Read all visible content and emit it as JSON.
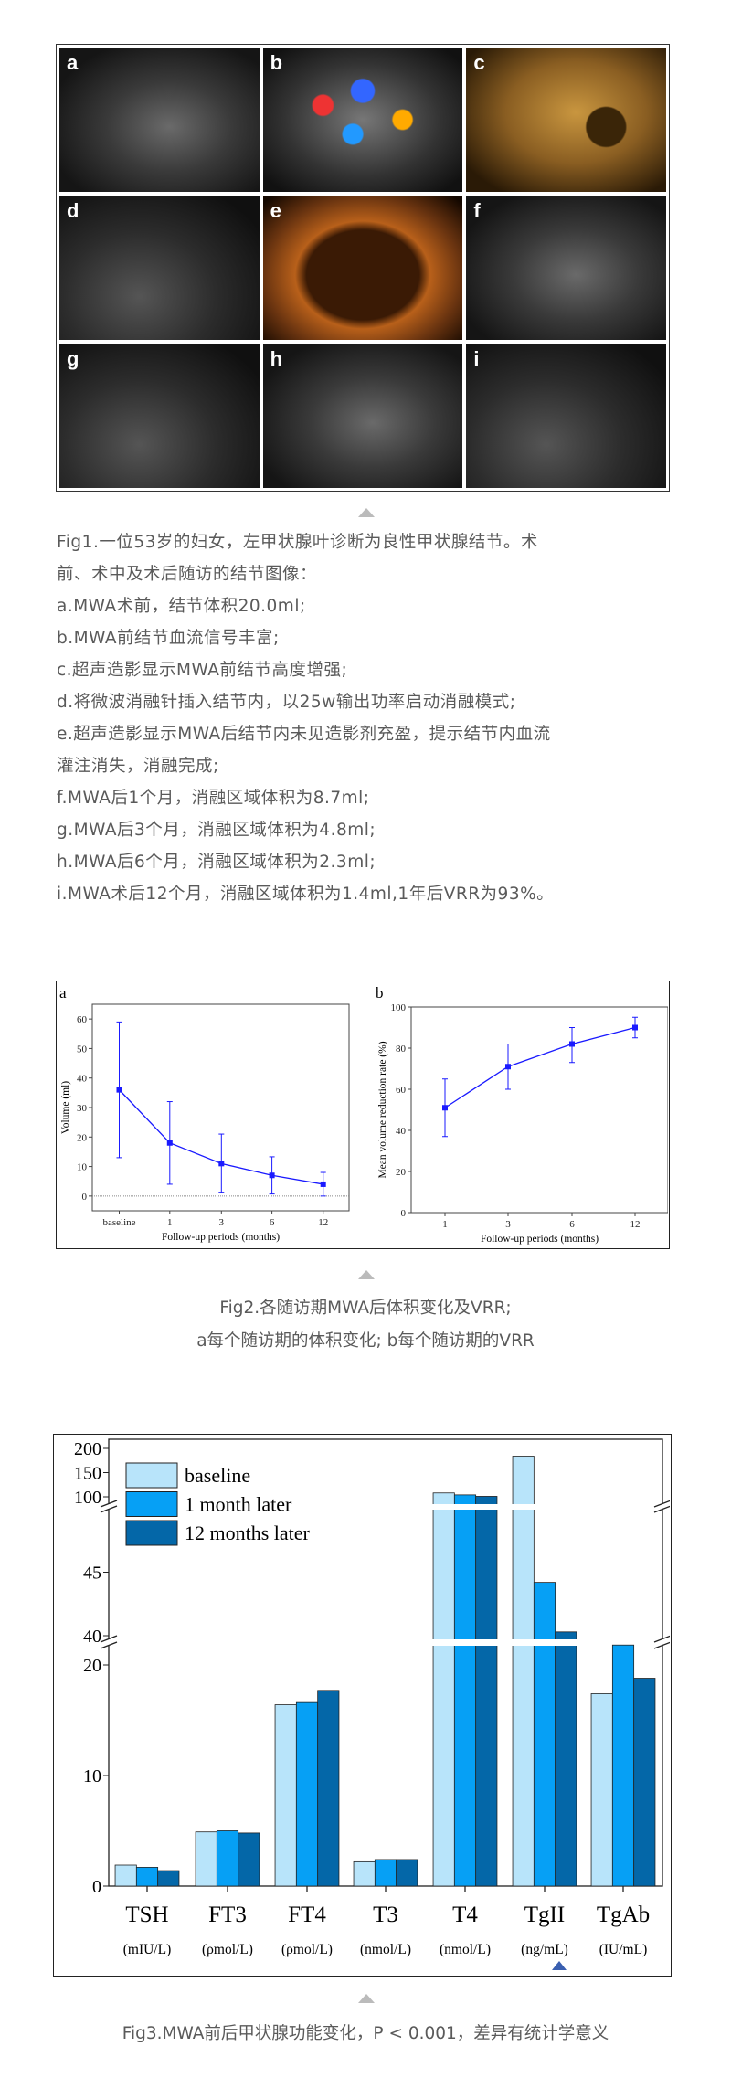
{
  "fig1": {
    "panel_labels": [
      "a",
      "b",
      "c",
      "d",
      "e",
      "f",
      "g",
      "h",
      "i"
    ],
    "caption_lines": [
      "Fig1.一位53岁的妇女，左甲状腺叶诊断为良性甲状腺结节。术",
      "前、术中及术后随访的结节图像：",
      "a.MWA术前，结节体积20.0ml;",
      "b.MWA前结节血流信号丰富;",
      "c.超声造影显示MWA前结节高度增强;",
      "d.将微波消融针插入结节内，以25w输出功率启动消融模式;",
      "e.超声造影显示MWA后结节内未见造影剂充盈，提示结节内血流",
      "灌注消失，消融完成;",
      "f.MWA后1个月，消融区域体积为8.7ml;",
      "g.MWA后3个月，消融区域体积为4.8ml;",
      "h.MWA后6个月，消融区域体积为2.3ml;",
      "i.MWA术后12个月，消融区域体积为1.4ml,1年后VRR为93%。"
    ]
  },
  "fig2": {
    "caption_lines": [
      "Fig2.各随访期MWA后体积变化及VRR;",
      "a每个随访期的体积变化; b每个随访期的VRR"
    ]
  },
  "fig3": {
    "caption": "Fig3.MWA前后甲状腺功能变化，P < 0.001，差异有统计学意义",
    "marker_icon": "triangle-up-icon",
    "marker_color": "#3a5fb0"
  },
  "chart_data": [
    {
      "type": "line",
      "panel": "a",
      "categories": [
        "baseline",
        "1",
        "3",
        "6",
        "12"
      ],
      "values": [
        36,
        18,
        11,
        7,
        4
      ],
      "error_low": [
        13,
        4,
        1.3,
        0.7,
        0
      ],
      "error_high": [
        59,
        32,
        21,
        13.3,
        8
      ],
      "xlabel": "Follow-up periods (months)",
      "ylabel": "Volume (ml)",
      "ylim": [
        -5,
        65
      ],
      "yticks": [
        0,
        10,
        20,
        30,
        40,
        50,
        60
      ],
      "reference_line": 0,
      "color": "#1a1aff"
    },
    {
      "type": "line",
      "panel": "b",
      "categories": [
        "1",
        "3",
        "6",
        "12"
      ],
      "values": [
        51,
        71,
        82,
        90
      ],
      "error_low": [
        37,
        60,
        73,
        85
      ],
      "error_high": [
        65,
        82,
        90,
        95
      ],
      "xlabel": "Follow-up periods (months)",
      "ylabel": "Mean volume reduction rate (%)",
      "ylim": [
        0,
        100
      ],
      "yticks": [
        0,
        20,
        40,
        60,
        80,
        100
      ],
      "color": "#1a1aff"
    },
    {
      "type": "bar",
      "categories": [
        "TSH",
        "FT3",
        "FT4",
        "T3",
        "T4",
        "TgII",
        "TgAb"
      ],
      "units": [
        "(mIU/L)",
        "(ρmol/L)",
        "(ρmol/L)",
        "(nmol/L)",
        "(nmol/L)",
        "(ng/mL)",
        "(IU/mL)"
      ],
      "series": [
        {
          "name": "baseline",
          "color": "#b8e4fa",
          "values": [
            1.9,
            4.9,
            16.4,
            2.2,
            108,
            184,
            17.4
          ]
        },
        {
          "name": "1 month later",
          "color": "#06a0f5",
          "values": [
            1.7,
            5.0,
            16.6,
            2.4,
            104,
            44.2,
            21.8
          ]
        },
        {
          "name": "12 months later",
          "color": "#0467a8",
          "values": [
            1.4,
            4.8,
            17.7,
            2.4,
            101,
            40.3,
            18.8
          ]
        }
      ],
      "broken_axis_segments": [
        [
          0,
          22
        ],
        [
          40,
          50
        ],
        [
          100,
          200
        ]
      ],
      "yticks": [
        0,
        10,
        20,
        40,
        45,
        100,
        150,
        200
      ],
      "legend": "top-left"
    }
  ]
}
